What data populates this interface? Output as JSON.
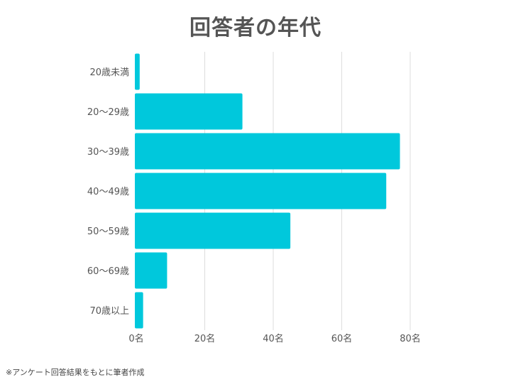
{
  "chart_data": {
    "type": "bar",
    "orientation": "horizontal",
    "title": "回答者の年代",
    "categories": [
      "20歳未満",
      "20〜29歳",
      "30〜39歳",
      "40〜49歳",
      "50〜59歳",
      "60〜69歳",
      "70歳以上"
    ],
    "values": [
      1,
      31,
      77,
      73,
      45,
      9,
      2
    ],
    "x_ticks": [
      "0名",
      "20名",
      "40名",
      "60名",
      "80名"
    ],
    "xlim": [
      0,
      80
    ],
    "grid": true,
    "bar_color": "#00c8dc"
  },
  "footnote": "※アンケート回答結果をもとに筆者作成"
}
